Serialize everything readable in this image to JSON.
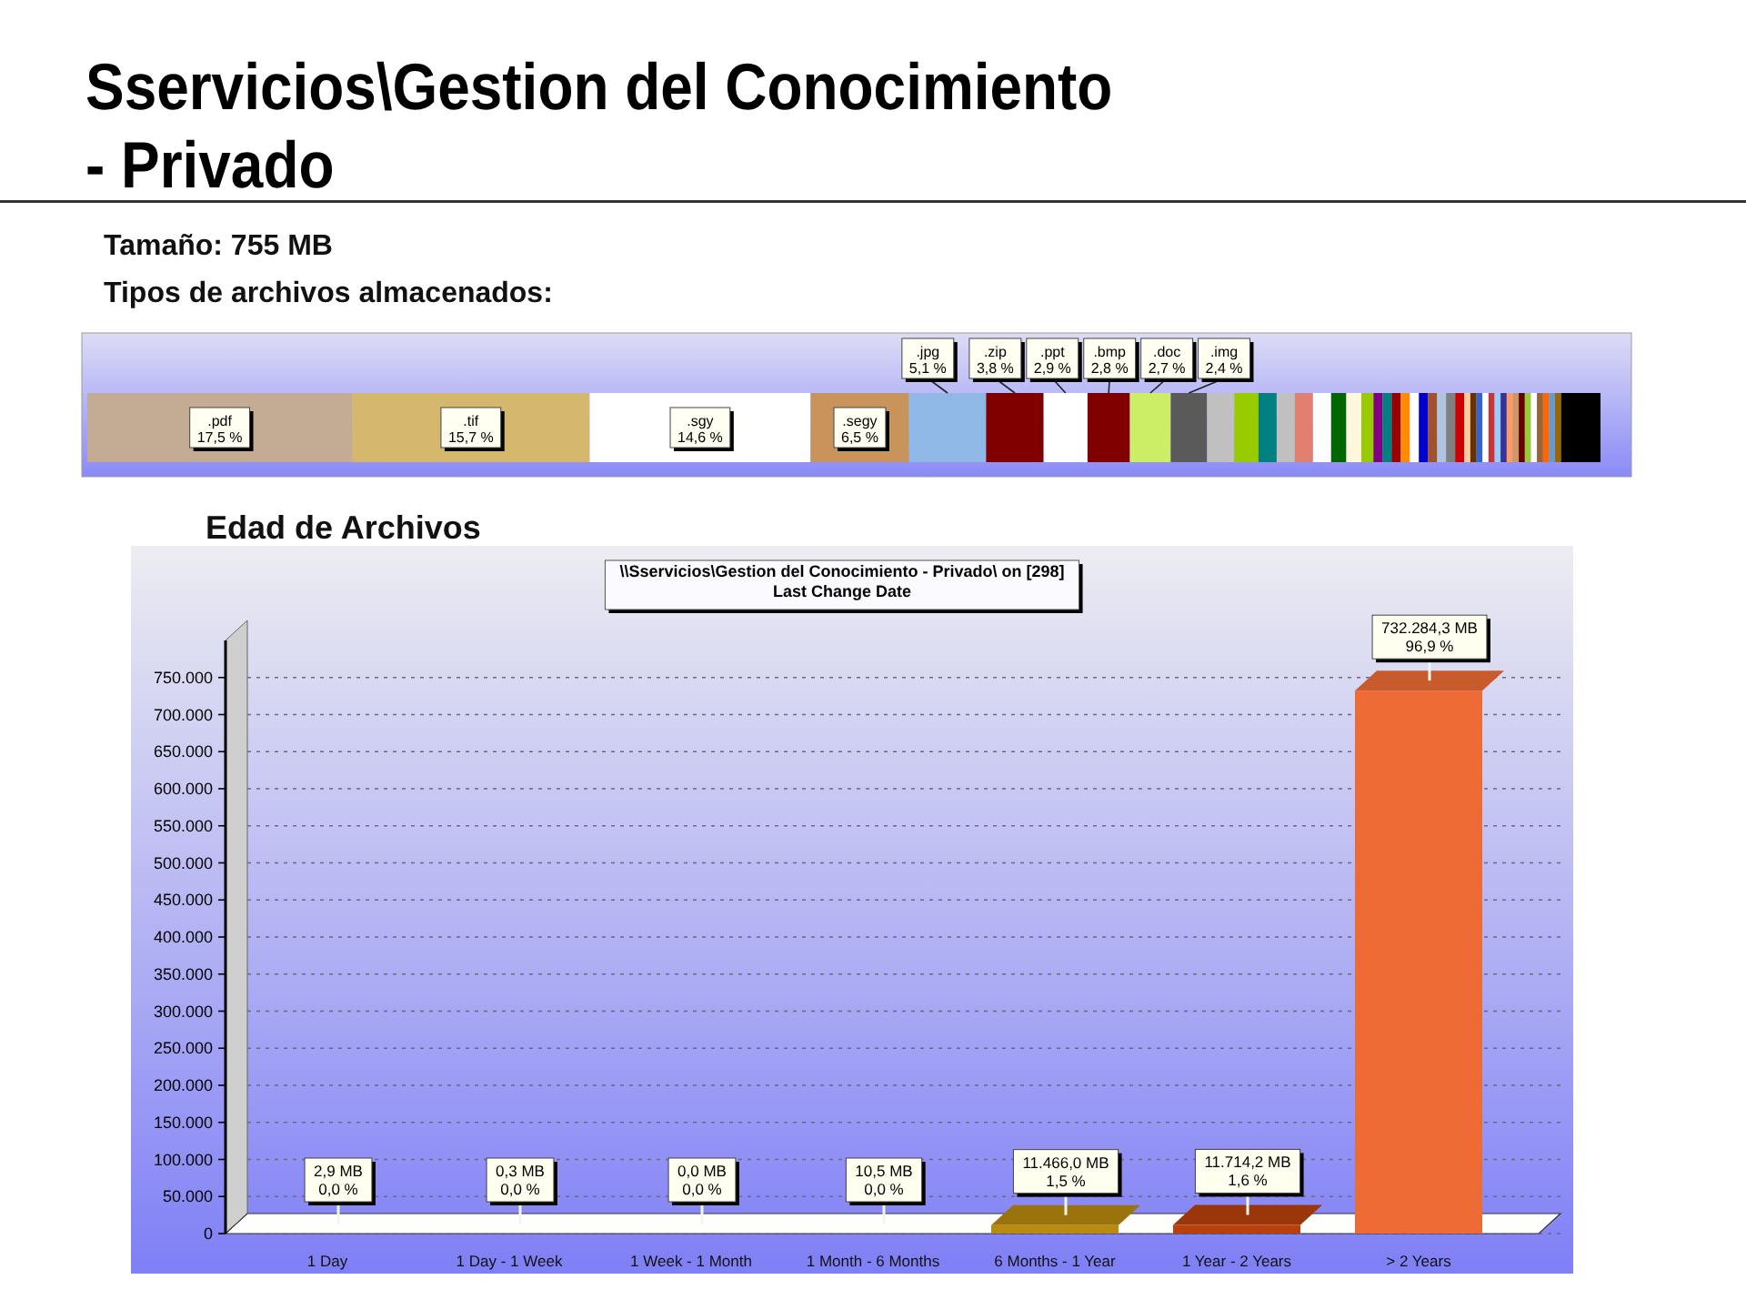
{
  "chart_data": [
    {
      "type": "bar",
      "orientation": "horizontal",
      "stacked": true,
      "title": "Sservicios\\Gestion del Conocimiento - Privado",
      "subtitle": "Tamaño: 755 MB",
      "annotations": [
        "Tipos de archivos almacenados:"
      ],
      "categories": [
        null
      ],
      "xlim": [
        0,
        100
      ],
      "series": [
        {
          "name": ".pdf",
          "color": "#c4ab94",
          "values": [
            17.5
          ],
          "value_labels": [
            "17,5 %"
          ]
        },
        {
          "name": ".tif",
          "color": "#d5b86e",
          "values": [
            15.7
          ],
          "value_labels": [
            "15,7 %"
          ]
        },
        {
          "name": ".sgy",
          "color": "#ffffff",
          "values": [
            14.6
          ],
          "value_labels": [
            "14,6 %"
          ]
        },
        {
          "name": ".segy",
          "color": "#c8945c",
          "values": [
            6.5
          ],
          "value_labels": [
            "6,5 %"
          ]
        },
        {
          "name": ".jpg",
          "color": "#8fb8e6",
          "values": [
            5.1
          ],
          "value_labels": [
            "5,1 %"
          ]
        },
        {
          "name": ".zip",
          "color": "#800000",
          "values": [
            3.8
          ],
          "value_labels": [
            "3,8 %"
          ]
        },
        {
          "name": ".ppt",
          "color": "#ffffff",
          "values": [
            2.9
          ],
          "value_labels": [
            "2,9 %"
          ]
        },
        {
          "name": ".bmp",
          "color": "#800000",
          "values": [
            2.8
          ],
          "value_labels": [
            "2,8 %"
          ]
        },
        {
          "name": ".doc",
          "color": "#ccee66",
          "values": [
            2.7
          ],
          "value_labels": [
            "2,7 %"
          ]
        },
        {
          "name": ".img",
          "color": "#5a5a5a",
          "values": [
            2.4
          ],
          "value_labels": [
            "2,4 %"
          ]
        },
        {
          "color": "#c0c0c0",
          "values": [
            1.8
          ]
        },
        {
          "color": "#99cc00",
          "values": [
            1.6
          ]
        },
        {
          "color": "#008080",
          "values": [
            1.2
          ]
        },
        {
          "color": "#c0c0c0",
          "values": [
            1.2
          ]
        },
        {
          "color": "#e08070",
          "values": [
            1.2
          ]
        },
        {
          "color": "#ffffff",
          "values": [
            1.2
          ]
        },
        {
          "color": "#006600",
          "values": [
            1.0
          ]
        },
        {
          "color": "#fff8dc",
          "values": [
            1.0
          ]
        },
        {
          "color": "#99cc00",
          "values": [
            0.8
          ]
        },
        {
          "color": "#800080",
          "values": [
            0.6
          ]
        },
        {
          "color": "#008080",
          "values": [
            0.6
          ]
        },
        {
          "color": "#990000",
          "values": [
            0.6
          ]
        },
        {
          "color": "#ff8c00",
          "values": [
            0.6
          ]
        },
        {
          "color": "#ffffff",
          "values": [
            0.6
          ]
        },
        {
          "color": "#0000cc",
          "values": [
            0.6
          ]
        },
        {
          "color": "#a0522d",
          "values": [
            0.6
          ]
        },
        {
          "color": "#b0c4de",
          "values": [
            0.6
          ]
        },
        {
          "color": "#808080",
          "values": [
            0.6
          ]
        },
        {
          "color": "#cc0000",
          "values": [
            0.6
          ]
        },
        {
          "color": "#ffcc99",
          "values": [
            0.4
          ]
        },
        {
          "color": "#663300",
          "values": [
            0.4
          ]
        },
        {
          "color": "#3366cc",
          "values": [
            0.4
          ]
        },
        {
          "color": "#ffffff",
          "values": [
            0.4
          ]
        },
        {
          "color": "#cc3333",
          "values": [
            0.4
          ]
        },
        {
          "color": "#99ccff",
          "values": [
            0.4
          ]
        },
        {
          "color": "#333399",
          "values": [
            0.4
          ]
        },
        {
          "color": "#ff9966",
          "values": [
            0.4
          ]
        },
        {
          "color": "#cc9966",
          "values": [
            0.4
          ]
        },
        {
          "color": "#660000",
          "values": [
            0.4
          ]
        },
        {
          "color": "#99cc33",
          "values": [
            0.4
          ]
        },
        {
          "color": "#ffffff",
          "values": [
            0.4
          ]
        },
        {
          "color": "#996633",
          "values": [
            0.4
          ]
        },
        {
          "color": "#ff6600",
          "values": [
            0.4
          ]
        },
        {
          "color": "#6699cc",
          "values": [
            0.4
          ]
        },
        {
          "color": "#996600",
          "values": [
            0.4
          ]
        },
        {
          "color": "#000000",
          "values": [
            2.6
          ]
        }
      ]
    },
    {
      "type": "bar",
      "title": "Edad de Archivos",
      "annotations": [
        "\\\\Sservicios\\Gestion del Conocimiento - Privado\\ on [298]",
        "Last Change Date"
      ],
      "categories": [
        "1 Day",
        "1 Day - 1 Week",
        "1 Week - 1 Month",
        "1 Month - 6 Months",
        "6 Months - 1 Year",
        "1 Year - 2 Years",
        "> 2 Years"
      ],
      "values": [
        2.9,
        0.3,
        0.0,
        10.5,
        11466.0,
        11714.2,
        732284.3
      ],
      "colors": [
        "#0f8a0f",
        "#168c16",
        "#4c8c1c",
        "#8c9c1c",
        "#b88a10",
        "#b8400c",
        "#ef6b35"
      ],
      "value_labels": [
        "2,9 MB\n0,0 %",
        "0,3 MB\n0,0 %",
        "0,0 MB\n0,0 %",
        "10,5 MB\n0,0 %",
        "11.466,0 MB\n1,5 %",
        "11.714,2 MB\n1,6 %",
        "732.284,3 MB\n96,9 %"
      ],
      "ylim": [
        0,
        800000
      ],
      "yticks": [
        0,
        {
          "value": 50000,
          "label": "50.000"
        },
        {
          "value": 100000,
          "label": "100.000"
        },
        {
          "value": 150000,
          "label": "150.000"
        },
        {
          "value": 200000,
          "label": "200.000"
        },
        {
          "value": 250000,
          "label": "250.000"
        },
        {
          "value": 300000,
          "label": "300.000"
        },
        {
          "value": 350000,
          "label": "350.000"
        },
        {
          "value": 400000,
          "label": "400.000"
        },
        {
          "value": 450000,
          "label": "450.000"
        },
        {
          "value": 500000,
          "label": "500.000"
        },
        {
          "value": 550000,
          "label": "550.000"
        },
        {
          "value": 600000,
          "label": "600.000"
        },
        {
          "value": 650000,
          "label": "650.000"
        },
        {
          "value": 700000,
          "label": "700.000"
        },
        {
          "value": 750000,
          "label": "750.000"
        }
      ],
      "grid": "y"
    }
  ]
}
